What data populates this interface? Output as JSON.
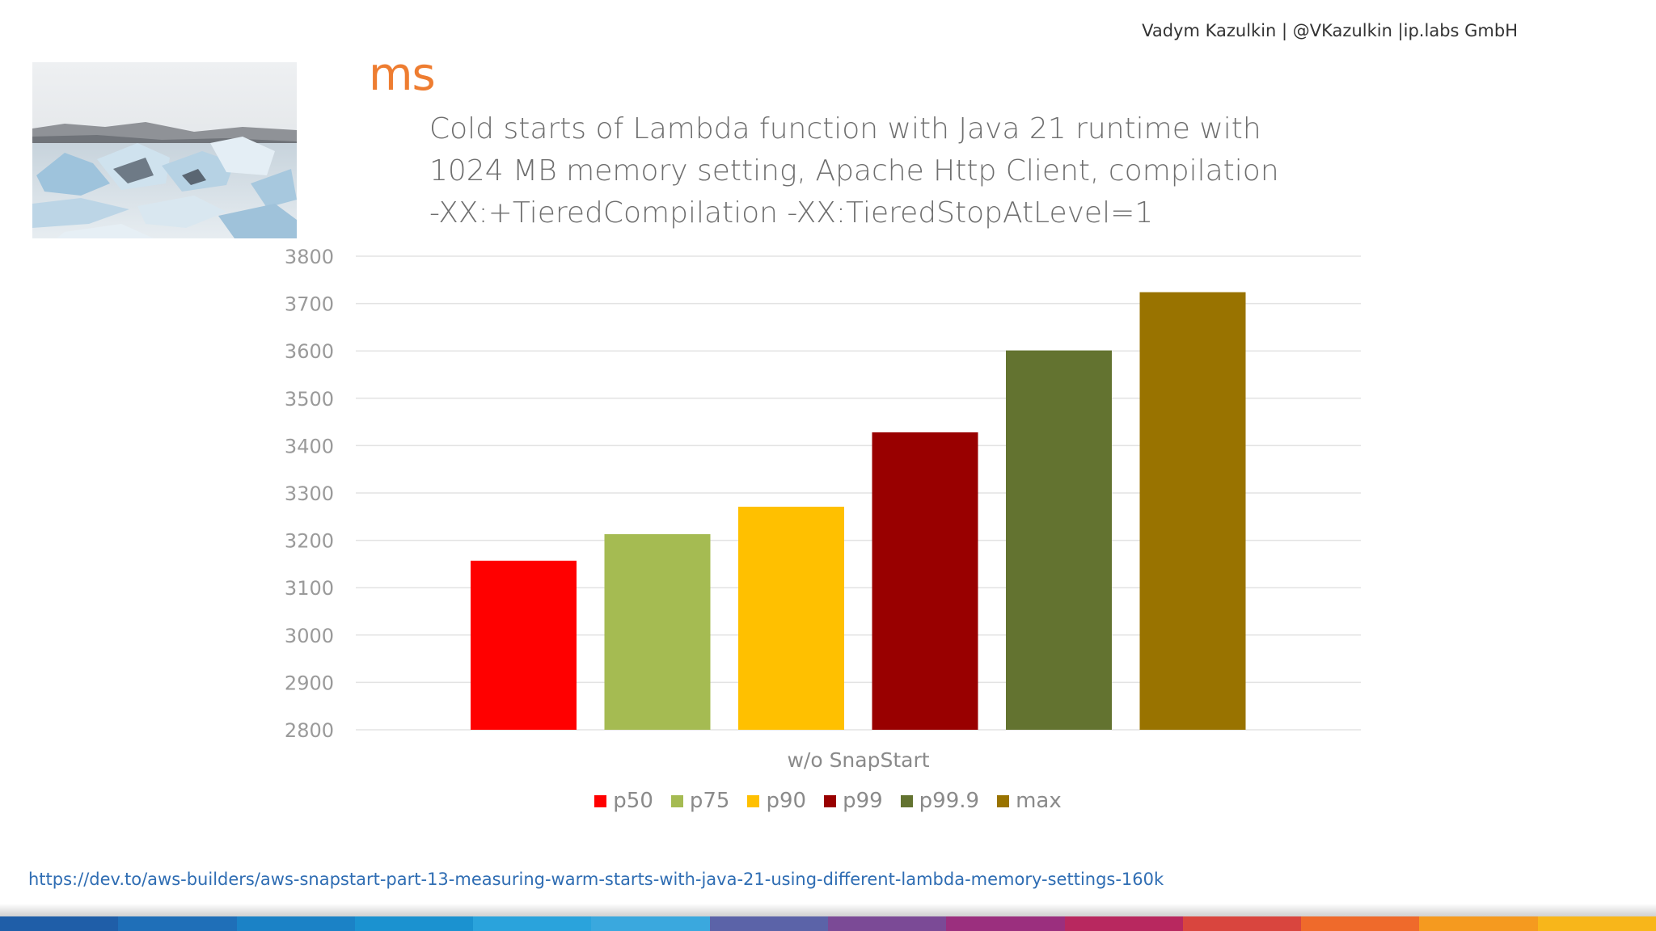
{
  "header": {
    "author": "Vadym Kazulkin | @VKazulkin |ip.labs GmbH",
    "unit": "ms",
    "title_lines": [
      "Cold starts of Lambda function with Java 21 runtime with",
      "1024 MB memory setting, Apache Http Client,  compilation",
      "-XX:+TieredCompilation -XX:TieredStopAtLevel=1"
    ]
  },
  "chart_data": {
    "type": "bar",
    "categories": [
      "w/o SnapStart"
    ],
    "series": [
      {
        "name": "p50",
        "values": [
          3157
        ],
        "color": "#ff0000"
      },
      {
        "name": "p75",
        "values": [
          3213
        ],
        "color": "#a5bb52"
      },
      {
        "name": "p90",
        "values": [
          3271
        ],
        "color": "#ffc000"
      },
      {
        "name": "p99",
        "values": [
          3428
        ],
        "color": "#990000"
      },
      {
        "name": "p99.9",
        "values": [
          3601
        ],
        "color": "#637330"
      },
      {
        "name": "max",
        "values": [
          3724
        ],
        "color": "#997300"
      }
    ],
    "yticks": [
      "3800",
      "3700",
      "3600",
      "3500",
      "3400",
      "3300",
      "3200",
      "3100",
      "3000",
      "2900",
      "2800"
    ],
    "ylim": [
      2800,
      3800
    ],
    "grid": true,
    "legend_position": "bottom"
  },
  "footer": {
    "source_link": "https://dev.to/aws-builders/aws-snapstart-part-13-measuring-warm-starts-with-java-21-using-different-lambda-memory-settings-160k",
    "bar_colors": [
      "#1f5ea8",
      "#1f6fb8",
      "#1b82c6",
      "#1b92d0",
      "#2aa3dc",
      "#3aa8de",
      "#5b63a8",
      "#7b4a96",
      "#9b2f7e",
      "#b8285f",
      "#d9453e",
      "#ef6a2b",
      "#f59a1f",
      "#f8b61a"
    ]
  },
  "photo": {
    "icon": "iceberg-photo"
  }
}
